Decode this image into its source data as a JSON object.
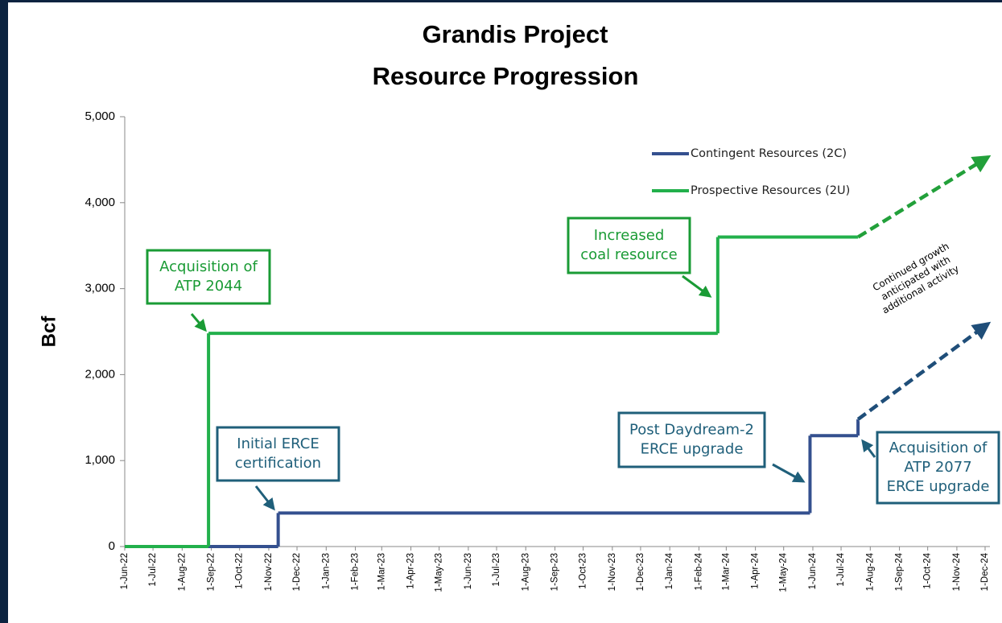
{
  "chart_data": {
    "type": "step-line",
    "title": [
      "Grandis Project",
      "Resource Progression"
    ],
    "y_label": "Bcf",
    "xlim": [
      "2022-06-01",
      "2024-12-01"
    ],
    "xticks": [
      {
        "value": "2022-06-01",
        "label": "1-Jun-22"
      },
      {
        "value": "2022-07-01",
        "label": "1-Jul-22"
      },
      {
        "value": "2022-08-01",
        "label": "1-Aug-22"
      },
      {
        "value": "2022-09-01",
        "label": "1-Sep-22"
      },
      {
        "value": "2022-10-01",
        "label": "1-Oct-22"
      },
      {
        "value": "2022-11-01",
        "label": "1-Nov-22"
      },
      {
        "value": "2022-12-01",
        "label": "1-Dec-22"
      },
      {
        "value": "2023-01-01",
        "label": "1-Jan-23"
      },
      {
        "value": "2023-02-01",
        "label": "1-Feb-23"
      },
      {
        "value": "2023-03-01",
        "label": "1-Mar-23"
      },
      {
        "value": "2023-04-01",
        "label": "1-Apr-23"
      },
      {
        "value": "2023-05-01",
        "label": "1-May-23"
      },
      {
        "value": "2023-06-01",
        "label": "1-Jun-23"
      },
      {
        "value": "2023-07-01",
        "label": "1-Jul-23"
      },
      {
        "value": "2023-08-01",
        "label": "1-Aug-23"
      },
      {
        "value": "2023-09-01",
        "label": "1-Sep-23"
      },
      {
        "value": "2023-10-01",
        "label": "1-Oct-23"
      },
      {
        "value": "2023-11-01",
        "label": "1-Nov-23"
      },
      {
        "value": "2023-12-01",
        "label": "1-Dec-23"
      },
      {
        "value": "2024-01-01",
        "label": "1-Jan-24"
      },
      {
        "value": "2024-02-01",
        "label": "1-Feb-24"
      },
      {
        "value": "2024-03-01",
        "label": "1-Mar-24"
      },
      {
        "value": "2024-04-01",
        "label": "1-Apr-24"
      },
      {
        "value": "2024-05-01",
        "label": "1-May-24"
      },
      {
        "value": "2024-06-01",
        "label": "1-Jun-24"
      },
      {
        "value": "2024-07-01",
        "label": "1-Jul-24"
      },
      {
        "value": "2024-08-01",
        "label": "1-Aug-24"
      },
      {
        "value": "2024-09-01",
        "label": "1-Sep-24"
      },
      {
        "value": "2024-10-01",
        "label": "1-Oct-24"
      },
      {
        "value": "2024-11-01",
        "label": "1-Nov-24"
      },
      {
        "value": "2024-12-01",
        "label": "1-Dec-24"
      }
    ],
    "ylim": [
      0,
      5000
    ],
    "yticks": [
      0,
      {
        "value": 1000,
        "label": "1,000"
      },
      {
        "value": 2000,
        "label": "2,000"
      },
      {
        "value": 3000,
        "label": "3,000"
      },
      {
        "value": 4000,
        "label": "4,000"
      },
      {
        "value": 5000,
        "label": "5,000"
      }
    ],
    "grid": false,
    "legend": "upper right",
    "series": [
      {
        "name": "Contingent Resources (2C)",
        "color": "#34508f",
        "x": [
          "2022-06-01",
          "2022-11-11",
          "2024-05-29",
          "2024-07-19"
        ],
        "values": [
          0,
          390,
          1290,
          1480
        ]
      },
      {
        "name": "Prospective Resources (2U)",
        "color": "#22b04b",
        "x": [
          "2022-06-01",
          "2022-08-29",
          "2024-02-21",
          "2024-07-19"
        ],
        "values": [
          0,
          2480,
          3600,
          3600
        ]
      }
    ],
    "projections": [
      {
        "color": "#1f4e79",
        "x": [
          "2024-07-19",
          "2024-12-04"
        ],
        "values": [
          1480,
          2590
        ]
      },
      {
        "color": "#22a03a",
        "x": [
          "2024-07-19",
          "2024-12-04"
        ],
        "values": [
          3600,
          4530
        ]
      }
    ],
    "annotations": [
      {
        "lines": [
          "Acquisition of",
          "ATP 2044"
        ],
        "color": "#1a9b35"
      },
      {
        "lines": [
          "Initial ERCE",
          "certification"
        ],
        "color": "#1f5f7a"
      },
      {
        "lines": [
          "Increased",
          "coal resource"
        ],
        "color": "#1a9b35"
      },
      {
        "lines": [
          "Post Daydream-2",
          "ERCE upgrade"
        ],
        "color": "#1f5f7a"
      },
      {
        "lines": [
          "Acquisition of",
          "ATP 2077",
          "ERCE upgrade"
        ],
        "color": "#1f5f7a"
      }
    ],
    "note": [
      "Continued growth",
      "anticipated with",
      "additional activity"
    ]
  }
}
